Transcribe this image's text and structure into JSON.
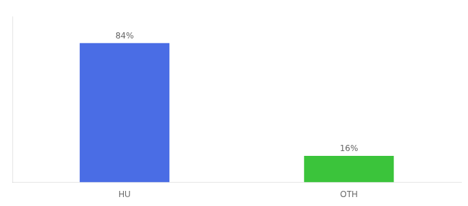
{
  "chart_data": {
    "type": "bar",
    "categories": [
      "HU",
      "OTH"
    ],
    "values": [
      84,
      16
    ],
    "value_labels": [
      "84%",
      "16%"
    ],
    "colors": [
      "#4a6de5",
      "#3bc43b"
    ],
    "data_labels": true,
    "ylim": [
      0,
      100
    ],
    "grid": false,
    "tick_labels": "x"
  }
}
